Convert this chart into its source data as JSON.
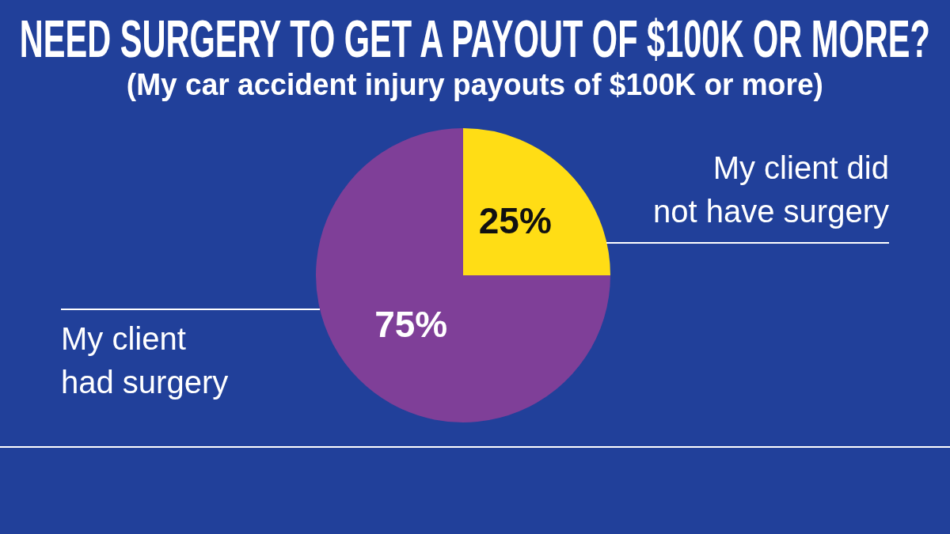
{
  "chart_data": {
    "type": "pie",
    "title": "NEED SURGERY TO GET A PAYOUT OF $100K OR MORE?",
    "subtitle": "(My car accident injury payouts of $100K or more)",
    "categories": [
      "My client did not have surgery",
      "My client had surgery"
    ],
    "values": [
      25,
      75
    ],
    "colors": [
      "#ffdd15",
      "#7f3f98"
    ],
    "value_labels": [
      "25%",
      "75%"
    ],
    "legend": false
  }
}
